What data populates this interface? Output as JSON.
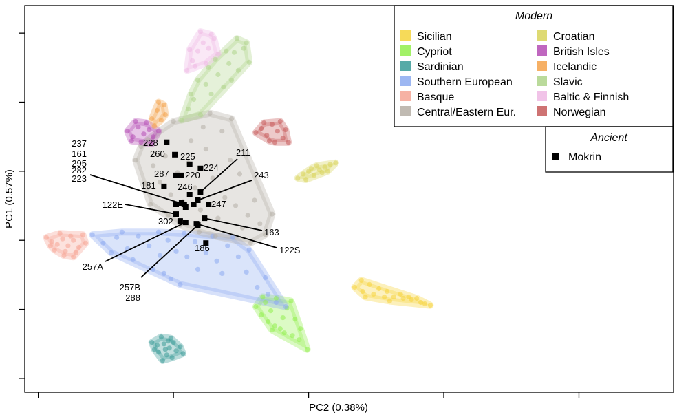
{
  "chart_data": {
    "type": "scatter",
    "title": "",
    "xlabel": "PC2 (0.38%)",
    "ylabel": "PC1 (0.57%)",
    "xlim": [
      0,
      48
    ],
    "ylim": [
      0,
      28
    ],
    "grid": false,
    "legend": {
      "modern_title": "Modern",
      "ancient_title": "Ancient",
      "placement": "top-right"
    },
    "modern_series": [
      {
        "name": "Sicilian",
        "color": "#f5d33c",
        "points": [
          [
            24.4,
            7.6
          ],
          [
            25,
            7.3
          ],
          [
            25.8,
            7.1
          ],
          [
            26.6,
            6.9
          ],
          [
            27.3,
            6.9
          ],
          [
            28,
            6.8
          ],
          [
            28.6,
            6.7
          ],
          [
            29.3,
            6.5
          ],
          [
            30,
            6.3
          ],
          [
            25.5,
            7.8
          ],
          [
            26.8,
            7.3
          ],
          [
            27.8,
            7.1
          ],
          [
            29,
            6.8
          ],
          [
            28.4,
            6.9
          ],
          [
            25.2,
            6.9
          ],
          [
            26.2,
            7.5
          ],
          [
            27,
            6.6
          ],
          [
            24.9,
            8.1
          ],
          [
            29.6,
            6.4
          ]
        ]
      },
      {
        "name": "Cypriot",
        "color": "#92ef4c",
        "points": [
          [
            17.1,
            6.2
          ],
          [
            17.5,
            5.6
          ],
          [
            18,
            5.1
          ],
          [
            18.5,
            4.8
          ],
          [
            19.2,
            4.3
          ],
          [
            19.8,
            4.1
          ],
          [
            20.3,
            3.8
          ],
          [
            20.9,
            3.1
          ],
          [
            17.8,
            6.5
          ],
          [
            18.6,
            6.8
          ],
          [
            19.4,
            6.1
          ],
          [
            20,
            5.3
          ],
          [
            18.2,
            5.9
          ],
          [
            19.1,
            5.4
          ],
          [
            18.9,
            4.6
          ],
          [
            17.6,
            6.9
          ],
          [
            19.7,
            6.6
          ],
          [
            20.4,
            4.6
          ],
          [
            18.3,
            4.5
          ]
        ]
      },
      {
        "name": "Sardinian",
        "color": "#3a9b98",
        "points": [
          [
            9.4,
            3.6
          ],
          [
            9.8,
            3.4
          ],
          [
            10.3,
            3.5
          ],
          [
            10.7,
            3.2
          ],
          [
            11,
            3.6
          ],
          [
            11.2,
            3
          ],
          [
            10.5,
            2.7
          ],
          [
            9.9,
            2.9
          ],
          [
            10.1,
            4
          ],
          [
            10.8,
            3.9
          ],
          [
            11.5,
            3.3
          ],
          [
            10.4,
            3.1
          ],
          [
            9.6,
            3.1
          ],
          [
            10.9,
            2.5
          ],
          [
            11.7,
            2.8
          ],
          [
            10.2,
            2.3
          ],
          [
            10.6,
            3.7
          ]
        ]
      },
      {
        "name": "Southern European",
        "color": "#8caaf0",
        "points": [
          [
            5,
            11.4
          ],
          [
            5.8,
            10.8
          ],
          [
            6.8,
            11.2
          ],
          [
            7.6,
            10.4
          ],
          [
            8.4,
            11.3
          ],
          [
            9.2,
            10.6
          ],
          [
            10,
            9.9
          ],
          [
            10.6,
            11
          ],
          [
            11.2,
            10.2
          ],
          [
            12,
            9.8
          ],
          [
            12.6,
            10.9
          ],
          [
            13.4,
            10.1
          ],
          [
            14.2,
            9.5
          ],
          [
            15,
            10.6
          ],
          [
            15.8,
            9.8
          ],
          [
            16.4,
            8.7
          ],
          [
            17.2,
            7.6
          ],
          [
            18,
            7.1
          ],
          [
            18.6,
            6.5
          ],
          [
            19.3,
            6.2
          ],
          [
            8,
            9.6
          ],
          [
            9.5,
            8.9
          ],
          [
            10.8,
            8.2
          ],
          [
            11.5,
            7.8
          ],
          [
            6.4,
            10.1
          ],
          [
            14.6,
            8.6
          ],
          [
            12.8,
            8.9
          ],
          [
            13.9,
            11.3
          ],
          [
            7.2,
            11.6
          ],
          [
            15.4,
            11.2
          ],
          [
            9.9,
            11.6
          ],
          [
            16.6,
            10.3
          ],
          [
            11.8,
            11.5
          ],
          [
            10.3,
            8.6
          ],
          [
            17.8,
            8.3
          ]
        ]
      },
      {
        "name": "Basque",
        "color": "#f5a494",
        "points": [
          [
            1.6,
            11.2
          ],
          [
            2,
            10.9
          ],
          [
            2.4,
            10.7
          ],
          [
            2.8,
            11.1
          ],
          [
            3.2,
            10.6
          ],
          [
            3.6,
            11
          ],
          [
            4,
            10.5
          ],
          [
            4.3,
            11.4
          ],
          [
            2.2,
            10.3
          ],
          [
            3,
            10.2
          ],
          [
            3.8,
            10.1
          ],
          [
            2.6,
            11.5
          ],
          [
            3.4,
            11.3
          ],
          [
            1.9,
            10.6
          ],
          [
            4.5,
            10.8
          ],
          [
            2.9,
            9.9
          ],
          [
            3.6,
            9.8
          ]
        ]
      },
      {
        "name": "Central/Eastern Eur.",
        "color": "#b5aea5",
        "points": [
          [
            8.2,
            16.8
          ],
          [
            8.6,
            17.8
          ],
          [
            9.1,
            18.3
          ],
          [
            9.5,
            16.4
          ],
          [
            10,
            15.2
          ],
          [
            10.4,
            17.1
          ],
          [
            10.8,
            14.3
          ],
          [
            11.3,
            15.9
          ],
          [
            11.7,
            13.8
          ],
          [
            12.1,
            16.6
          ],
          [
            12.6,
            14.8
          ],
          [
            13,
            13.2
          ],
          [
            13.4,
            17.6
          ],
          [
            13.9,
            15.5
          ],
          [
            14.3,
            12.6
          ],
          [
            14.8,
            14.1
          ],
          [
            15.2,
            16.8
          ],
          [
            15.6,
            13.5
          ],
          [
            16.1,
            11.9
          ],
          [
            16.5,
            12.8
          ],
          [
            17,
            13.9
          ],
          [
            17.4,
            12.2
          ],
          [
            17.8,
            11.4
          ],
          [
            18.3,
            12.9
          ],
          [
            13.2,
            19.2
          ],
          [
            14.6,
            18.9
          ],
          [
            12.3,
            18.2
          ],
          [
            9.3,
            13.6
          ],
          [
            10.6,
            12.8
          ],
          [
            11.5,
            12.1
          ],
          [
            15.9,
            15.8
          ],
          [
            8.9,
            15.1
          ],
          [
            14.1,
            11.3
          ],
          [
            16.7,
            10.8
          ],
          [
            12.9,
            11.6
          ],
          [
            15.3,
            19.8
          ],
          [
            11,
            19.6
          ],
          [
            13.7,
            20.2
          ]
        ]
      },
      {
        "name": "Croatian",
        "color": "#d8d35a",
        "points": [
          [
            20.2,
            15.5
          ],
          [
            20.6,
            15.8
          ],
          [
            21,
            16
          ],
          [
            21.4,
            15.7
          ],
          [
            21.8,
            16.1
          ],
          [
            22.2,
            16.3
          ],
          [
            22.6,
            16.5
          ],
          [
            23,
            16.6
          ],
          [
            21.2,
            16.2
          ],
          [
            22,
            15.9
          ],
          [
            22.4,
            16
          ],
          [
            20.8,
            15.4
          ],
          [
            21.6,
            16.4
          ]
        ]
      },
      {
        "name": "British Isles",
        "color": "#b44cb4",
        "points": [
          [
            7.6,
            18.9
          ],
          [
            8,
            18.5
          ],
          [
            8.4,
            19.2
          ],
          [
            8.8,
            18.7
          ],
          [
            9.2,
            19
          ],
          [
            9.5,
            18.5
          ],
          [
            9.9,
            18.9
          ],
          [
            8.6,
            18.1
          ],
          [
            9.4,
            18
          ],
          [
            8.2,
            19.6
          ],
          [
            9,
            19.5
          ],
          [
            7.9,
            18.2
          ]
        ]
      },
      {
        "name": "Icelandic",
        "color": "#f4a24a",
        "points": [
          [
            9.4,
            19.8
          ],
          [
            9.8,
            20.4
          ],
          [
            10.1,
            19.7
          ],
          [
            9.6,
            19.3
          ],
          [
            10.3,
            20.8
          ],
          [
            9.9,
            21
          ],
          [
            10.4,
            20.1
          ]
        ]
      },
      {
        "name": "Slavic",
        "color": "#aed48a",
        "points": [
          [
            11.6,
            19.7
          ],
          [
            12.1,
            20.5
          ],
          [
            12.5,
            21.2
          ],
          [
            13,
            20.1
          ],
          [
            13.4,
            22.3
          ],
          [
            13.8,
            21.6
          ],
          [
            14.3,
            23
          ],
          [
            14.7,
            22.1
          ],
          [
            15.1,
            23.8
          ],
          [
            15.5,
            24.6
          ],
          [
            15.8,
            23.3
          ],
          [
            16.2,
            24.9
          ],
          [
            14.9,
            24.7
          ],
          [
            13.6,
            23.5
          ],
          [
            12.8,
            22.6
          ],
          [
            16.6,
            23.9
          ],
          [
            15.3,
            22.6
          ],
          [
            12.3,
            21.6
          ],
          [
            14.1,
            24.1
          ],
          [
            16.4,
            25.3
          ],
          [
            15.7,
            25.6
          ]
        ]
      },
      {
        "name": "Baltic & Finnish",
        "color": "#eeb8e4",
        "points": [
          [
            12,
            23.3
          ],
          [
            12.4,
            24
          ],
          [
            12.8,
            24.7
          ],
          [
            13.2,
            25.3
          ],
          [
            13.6,
            24.9
          ],
          [
            14,
            25.6
          ],
          [
            12.6,
            23.6
          ],
          [
            13.4,
            23.8
          ],
          [
            14.3,
            24.5
          ],
          [
            12.2,
            24.8
          ],
          [
            13.8,
            25.9
          ],
          [
            13,
            26.1
          ]
        ]
      },
      {
        "name": "Norwegian",
        "color": "#c65a5a",
        "points": [
          [
            17.1,
            18.8
          ],
          [
            17.5,
            19.1
          ],
          [
            17.9,
            18.6
          ],
          [
            18.3,
            19.4
          ],
          [
            18.7,
            18.9
          ],
          [
            19.1,
            18.4
          ],
          [
            19.5,
            18.1
          ],
          [
            18.1,
            18.2
          ],
          [
            17.7,
            19.5
          ],
          [
            18.9,
            19.6
          ],
          [
            19.3,
            19
          ],
          [
            18.5,
            18.1
          ]
        ]
      }
    ],
    "ancient_series": [
      {
        "name": "Mokrin",
        "color": "#000000",
        "marker": "square",
        "points": [
          {
            "label": "228",
            "x": 10.5,
            "y": 18.1
          },
          {
            "label": "260",
            "x": 11.1,
            "y": 17.2
          },
          {
            "label": "225",
            "x": 12.2,
            "y": 16.5
          },
          {
            "label": "224",
            "x": 13,
            "y": 16.2
          },
          {
            "label": "287",
            "x": 11.2,
            "y": 15.7
          },
          {
            "label": "220",
            "x": 11.6,
            "y": 15.7
          },
          {
            "label": "181",
            "x": 10.3,
            "y": 14.9
          },
          {
            "label": "246",
            "x": 12.2,
            "y": 14.3
          },
          {
            "label": "211",
            "x": 13,
            "y": 14.5
          },
          {
            "label": "243",
            "x": 12.8,
            "y": 13.9
          },
          {
            "label": "247",
            "x": 13.6,
            "y": 13.6
          },
          {
            "label": "237",
            "x": 11.2,
            "y": 13.6
          },
          {
            "label": "161",
            "x": 11.6,
            "y": 13.7
          },
          {
            "label": "295",
            "x": 11.9,
            "y": 13.4
          },
          {
            "label": "282",
            "x": 12.5,
            "y": 13.6
          },
          {
            "label": "223",
            "x": 11.8,
            "y": 13.6
          },
          {
            "label": "122E",
            "x": 11.2,
            "y": 12.9
          },
          {
            "label": "302",
            "x": 11.5,
            "y": 12.4
          },
          {
            "label": "163",
            "x": 13.3,
            "y": 12.6
          },
          {
            "label": "122S",
            "x": 12.7,
            "y": 12.2
          },
          {
            "label": "257A",
            "x": 11.9,
            "y": 12.3
          },
          {
            "label": "257B",
            "x": 12.8,
            "y": 12.1
          },
          {
            "label": "186",
            "x": 13.4,
            "y": 10.8
          }
        ]
      }
    ],
    "annotation_extra_labels": [
      "288"
    ]
  }
}
